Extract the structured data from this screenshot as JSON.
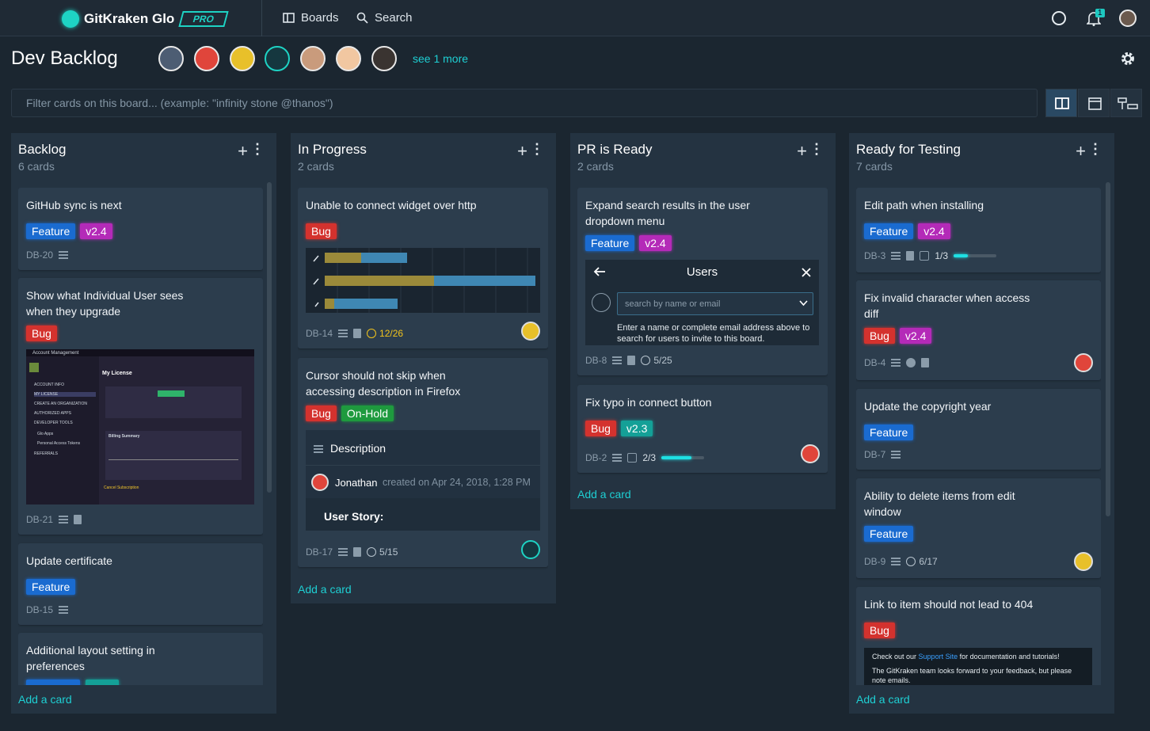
{
  "header": {
    "brand": "GitKraken Glo",
    "badge": "PRO",
    "nav": [
      "Boards",
      "Search"
    ],
    "notifications": "1"
  },
  "board": {
    "title": "Dev Backlog",
    "see_more": "see 1 more",
    "filter_placeholder": "Filter cards on this board... (example: \"infinity stone @thanos\")"
  },
  "columns": [
    {
      "title": "Backlog",
      "count": "6 cards",
      "add": "Add a card",
      "cards": [
        {
          "title": "GitHub sync is next",
          "labels": [
            "Feature",
            "v2.4"
          ],
          "id": "DB-20"
        },
        {
          "title": "Show what Individual User sees when they upgrade",
          "labels": [
            "Bug"
          ],
          "id": "DB-21",
          "screenshot": {
            "heading": "Account Management",
            "section": "My License",
            "menu": [
              "ACCOUNT INFO",
              "MY LICENSE",
              "CREATE AN ORGANIZATION",
              "AUTHORIZED APPS",
              "DEVELOPER TOOLS",
              "Glo Apps",
              "Personal Access Tokens",
              "REFERRALS"
            ],
            "summary": "Billing Summary",
            "cancel": "Cancel Subscription"
          }
        },
        {
          "title": "Update certificate",
          "labels": [
            "Feature"
          ],
          "id": "DB-15"
        },
        {
          "title": "Additional layout setting in preferences"
        }
      ]
    },
    {
      "title": "In Progress",
      "count": "2 cards",
      "add": "Add a card",
      "cards": [
        {
          "title": "Unable to connect widget over http",
          "labels": [
            "Bug"
          ],
          "id": "DB-14",
          "due": "12/26"
        },
        {
          "title": "Cursor should not skip when accessing description in Firefox",
          "labels": [
            "Bug",
            "On-Hold"
          ],
          "id": "DB-17",
          "due": "5/15",
          "description": {
            "heading": "Description",
            "author": "Jonathan",
            "meta": "created on Apr 24, 2018, 1:28 PM",
            "body": "User Story:"
          }
        }
      ]
    },
    {
      "title": "PR is Ready",
      "count": "2 cards",
      "add": "Add a card",
      "cards": [
        {
          "title": "Expand search results in the user dropdown menu",
          "labels": [
            "Feature",
            "v2.4"
          ],
          "id": "DB-8",
          "due": "5/25",
          "invite": {
            "heading": "Users",
            "placeholder": "search by name or email",
            "hint": "Enter a name or complete email address above to search for users to invite to this board."
          }
        },
        {
          "title": "Fix typo in connect button",
          "labels": [
            "Bug",
            "v2.3"
          ],
          "id": "DB-2",
          "checklist": "2/3"
        }
      ]
    },
    {
      "title": "Ready for Testing",
      "count": "7 cards",
      "add": "Add a card",
      "cards": [
        {
          "title": "Edit path when installing",
          "labels": [
            "Feature",
            "v2.4"
          ],
          "id": "DB-3",
          "checklist": "1/3"
        },
        {
          "title": "Fix invalid character when access diff",
          "labels": [
            "Bug",
            "v2.4"
          ],
          "id": "DB-4"
        },
        {
          "title": "Update the copyright year",
          "labels": [
            "Feature"
          ],
          "id": "DB-7"
        },
        {
          "title": "Ability to delete items from edit window",
          "labels": [
            "Feature"
          ],
          "id": "DB-9",
          "due": "6/17"
        },
        {
          "title": "Link to item should not lead to 404",
          "labels": [
            "Bug"
          ],
          "note": {
            "before": "Check out our",
            "link": "Support Site",
            "after": "for documentation and tutorials!",
            "line2": "The GitKraken team looks forward to your feedback, but please note emails."
          }
        }
      ]
    }
  ]
}
